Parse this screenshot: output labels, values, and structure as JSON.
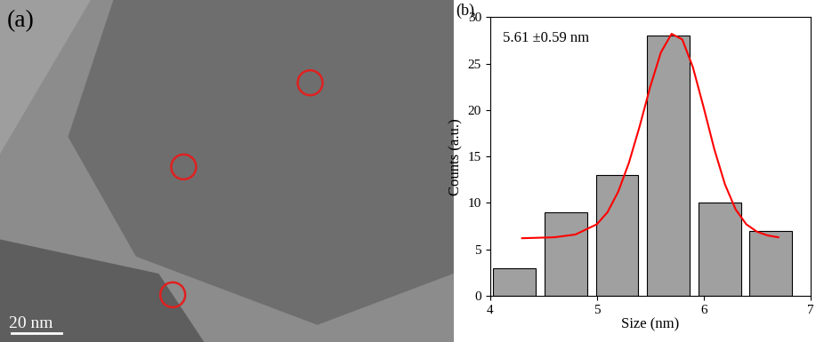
{
  "image_panel": {
    "label": "(a)",
    "scale_bar": "20 nm"
  },
  "chart_data": {
    "type": "histogram",
    "title": "(b)",
    "x_label": "Size (nm)",
    "y_label": "Counts (a.u.)",
    "annotation": "5.61 ±0.59 nm",
    "bins": [
      3.99,
      4.47,
      4.95,
      5.43,
      5.91,
      6.39,
      6.87
    ],
    "counts": [
      3,
      9,
      13,
      28,
      10,
      7
    ],
    "color": "#a0a0a0",
    "series": [
      {
        "type": "line",
        "color": "#ff0000",
        "x": [
          4.3,
          4.6,
          4.8,
          5.0,
          5.1,
          5.2,
          5.3,
          5.4,
          5.5,
          5.6,
          5.7,
          5.8,
          5.9,
          6.0,
          6.1,
          6.2,
          6.3,
          6.4,
          6.5,
          6.6,
          6.7
        ],
        "values": [
          6.2,
          6.3,
          6.6,
          7.7,
          9.0,
          11.2,
          14.3,
          18.2,
          22.5,
          26.2,
          28.2,
          27.6,
          24.6,
          20.3,
          15.8,
          12.0,
          9.3,
          7.7,
          6.9,
          6.5,
          6.3
        ]
      }
    ],
    "xlim": [
      4,
      7
    ],
    "xticks": [
      4,
      5,
      6,
      7
    ],
    "ylim": [
      0,
      30
    ],
    "yticks": [
      0,
      5,
      10,
      15,
      20,
      25,
      30
    ]
  }
}
